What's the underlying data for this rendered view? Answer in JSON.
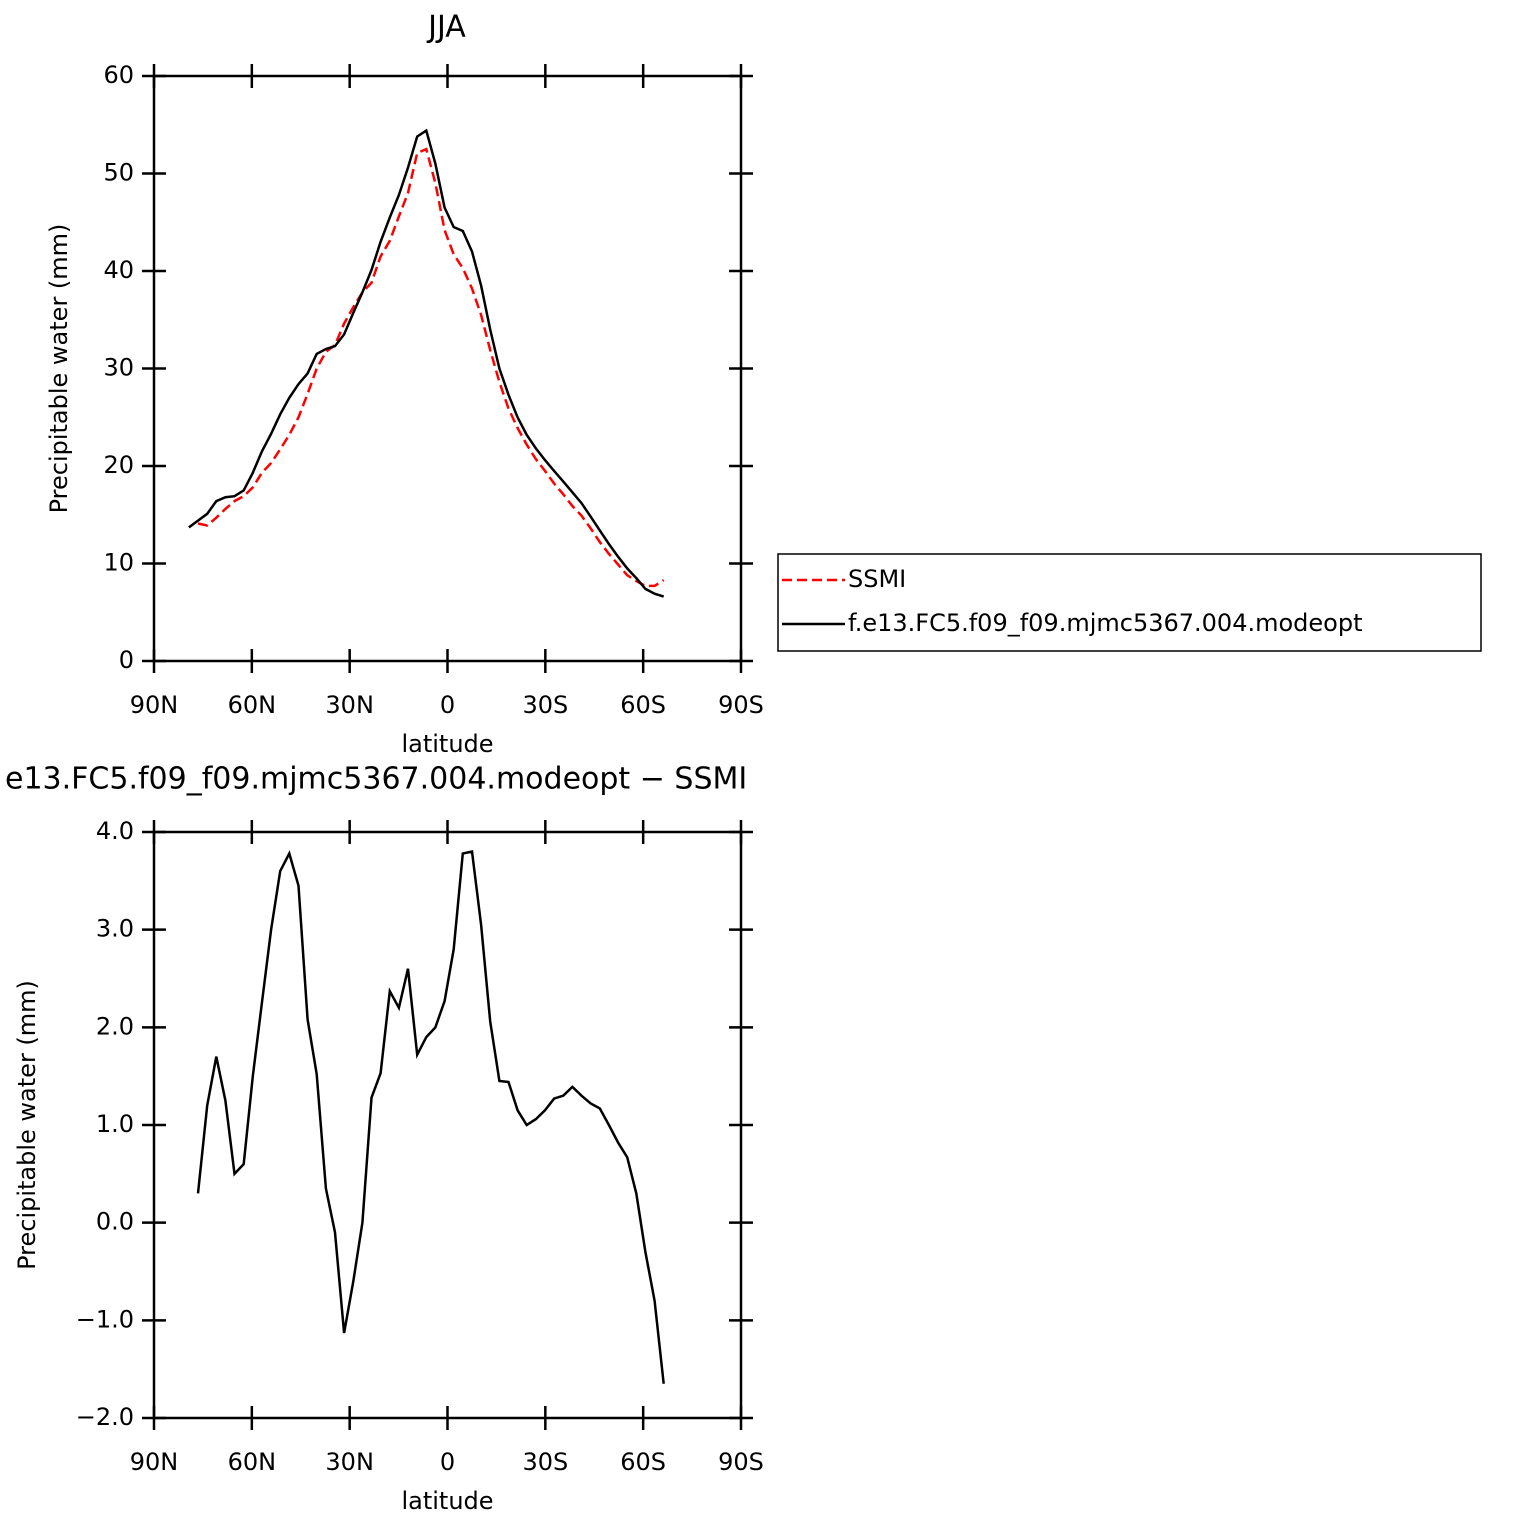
{
  "chart_data": [
    {
      "type": "line",
      "title": "JJA",
      "xlabel": "latitude",
      "ylabel": "Precipitable water (mm)",
      "x": [
        79.3,
        76.5,
        73.7,
        70.9,
        68.1,
        65.3,
        62.5,
        59.7,
        56.9,
        54.1,
        51.3,
        48.5,
        45.7,
        42.9,
        40.1,
        37.3,
        34.5,
        31.7,
        28.9,
        26.1,
        23.3,
        20.5,
        17.7,
        14.9,
        12.1,
        9.3,
        6.5,
        3.7,
        0.9,
        -1.9,
        -4.7,
        -7.5,
        -10.3,
        -13.1,
        -15.9,
        -18.7,
        -21.5,
        -24.3,
        -27.1,
        -29.9,
        -32.7,
        -35.5,
        -38.3,
        -41.1,
        -43.9,
        -46.7,
        -49.5,
        -52.3,
        -55.1,
        -57.9,
        -60.7,
        -63.5,
        -66.3
      ],
      "xlim": [
        90,
        -90
      ],
      "xticks": [
        {
          "value": 90,
          "label": "90N"
        },
        {
          "value": 60,
          "label": "60N"
        },
        {
          "value": 30,
          "label": "30N"
        },
        0,
        {
          "value": -30,
          "label": "30S"
        },
        {
          "value": -60,
          "label": "60S"
        },
        {
          "value": -90,
          "label": "90S"
        }
      ],
      "ylim": [
        0,
        60
      ],
      "yticks": [
        0,
        10,
        20,
        30,
        40,
        50,
        60
      ],
      "legend": "right",
      "series": [
        {
          "name": "SSMI",
          "color": "#ff0000",
          "linestyle": "dashed",
          "values": [
            null,
            14.1,
            13.9,
            14.7,
            15.6,
            16.4,
            16.9,
            17.8,
            19.3,
            20.3,
            21.7,
            23.2,
            25.0,
            27.4,
            30.0,
            31.7,
            32.4,
            34.6,
            36.3,
            37.8,
            38.8,
            41.5,
            43.1,
            45.6,
            48.0,
            52.1,
            52.5,
            49.0,
            44.2,
            41.7,
            40.3,
            38.2,
            35.5,
            31.9,
            28.6,
            25.9,
            23.9,
            22.2,
            20.7,
            19.5,
            18.2,
            17.1,
            15.9,
            14.9,
            13.6,
            12.2,
            11.0,
            9.9,
            8.8,
            8.2,
            7.7,
            7.7,
            8.3
          ]
        },
        {
          "name": "f.e13.FC5.f09_f09.mjmc5367.004.modeopt",
          "color": "#000000",
          "linestyle": "solid",
          "values": [
            13.7,
            14.4,
            15.1,
            16.4,
            16.8,
            16.9,
            17.5,
            19.3,
            21.5,
            23.3,
            25.3,
            27.0,
            28.4,
            29.5,
            31.5,
            32.0,
            32.3,
            33.5,
            35.7,
            37.8,
            40.1,
            43.0,
            45.5,
            47.8,
            50.6,
            53.8,
            54.4,
            51.0,
            46.5,
            44.5,
            44.1,
            42.0,
            38.5,
            34.0,
            30.0,
            27.3,
            25.0,
            23.2,
            21.8,
            20.6,
            19.5,
            18.4,
            17.3,
            16.2,
            14.8,
            13.4,
            12.0,
            10.7,
            9.5,
            8.5,
            7.4,
            6.9,
            6.6
          ]
        }
      ]
    },
    {
      "type": "line",
      "title": "e13.FC5.f09_f09.mjmc5367.004.modeopt − SSMI",
      "xlabel": "latitude",
      "ylabel": "Precipitable water (mm)",
      "x": [
        76.5,
        73.7,
        70.9,
        68.1,
        65.3,
        62.5,
        59.7,
        56.9,
        54.1,
        51.3,
        48.5,
        45.7,
        42.9,
        40.1,
        37.3,
        34.5,
        31.7,
        28.9,
        26.1,
        23.3,
        20.5,
        17.7,
        14.9,
        12.1,
        9.3,
        6.5,
        3.7,
        0.9,
        -1.9,
        -4.7,
        -7.5,
        -10.3,
        -13.1,
        -15.9,
        -18.7,
        -21.5,
        -24.3,
        -27.1,
        -29.9,
        -32.7,
        -35.5,
        -38.3,
        -41.1,
        -43.9,
        -46.7,
        -49.5,
        -52.3,
        -55.1,
        -57.9,
        -60.7,
        -63.5,
        -66.3
      ],
      "xlim": [
        90,
        -90
      ],
      "xticks": [
        {
          "value": 90,
          "label": "90N"
        },
        {
          "value": 60,
          "label": "60N"
        },
        {
          "value": 30,
          "label": "30N"
        },
        0,
        {
          "value": -30,
          "label": "30S"
        },
        {
          "value": -60,
          "label": "60S"
        },
        {
          "value": -90,
          "label": "90S"
        }
      ],
      "ylim": [
        -2,
        4
      ],
      "yticks": [
        {
          "value": -2,
          "label": "−2.0"
        },
        {
          "value": -1,
          "label": "−1.0"
        },
        {
          "value": 0,
          "label": "0.0"
        },
        {
          "value": 1,
          "label": "1.0"
        },
        {
          "value": 2,
          "label": "2.0"
        },
        {
          "value": 3,
          "label": "3.0"
        },
        {
          "value": 4,
          "label": "4.0"
        }
      ],
      "series": [
        {
          "color": "#000000",
          "linestyle": "solid",
          "values": [
            0.3,
            1.2,
            1.7,
            1.25,
            0.5,
            0.6,
            1.5,
            2.25,
            3.0,
            3.6,
            3.78,
            3.45,
            2.08,
            1.52,
            0.35,
            -0.1,
            -1.13,
            -0.6,
            0.0,
            1.28,
            1.53,
            2.37,
            2.2,
            2.6,
            1.72,
            1.9,
            2.0,
            2.27,
            2.8,
            3.78,
            3.8,
            3.05,
            2.06,
            1.45,
            1.44,
            1.15,
            1.0,
            1.06,
            1.15,
            1.27,
            1.3,
            1.39,
            1.3,
            1.22,
            1.17,
            1.0,
            0.82,
            0.67,
            0.3,
            -0.3,
            -0.8,
            -1.65
          ]
        }
      ]
    }
  ]
}
